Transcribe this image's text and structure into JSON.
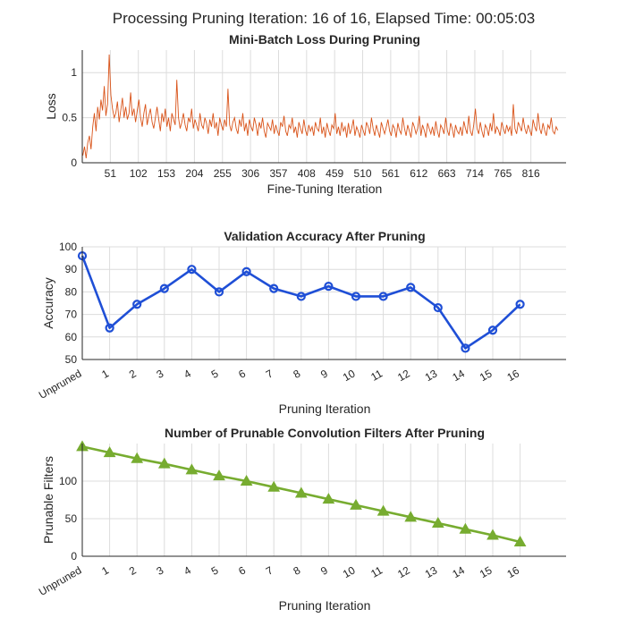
{
  "figure": {
    "suptitle": "Processing Pruning Iteration: 16 of 16, Elapsed Time: 00:05:03"
  },
  "colors": {
    "loss_line": "#D95319",
    "accuracy_line": "#1F4FD6",
    "filters_line": "#77AC30",
    "grid": "#dcdcdc",
    "axis": "#262626"
  },
  "chart_data": [
    {
      "type": "line",
      "title": "Mini-Batch Loss During Pruning",
      "xlabel": "Fine-Tuning Iteration",
      "ylabel": "Loss",
      "xlim": [
        0,
        880
      ],
      "ylim": [
        0,
        1.25
      ],
      "xticks": [
        51,
        102,
        153,
        204,
        255,
        306,
        357,
        408,
        459,
        510,
        561,
        612,
        663,
        714,
        765,
        816
      ],
      "yticks": [
        0,
        0.5,
        1
      ],
      "ytick_labels": [
        "0",
        "0.5",
        "1"
      ],
      "grid": true,
      "series": [
        {
          "x_start": 1,
          "x_step": 3,
          "values": [
            0.08,
            0.18,
            0.05,
            0.22,
            0.3,
            0.15,
            0.4,
            0.55,
            0.35,
            0.62,
            0.48,
            0.7,
            0.58,
            0.85,
            0.52,
            0.65,
            1.2,
            0.75,
            0.6,
            0.5,
            0.55,
            0.68,
            0.45,
            0.58,
            0.72,
            0.5,
            0.62,
            0.48,
            0.55,
            0.78,
            0.52,
            0.6,
            0.45,
            0.58,
            0.7,
            0.5,
            0.4,
            0.55,
            0.65,
            0.42,
            0.52,
            0.6,
            0.45,
            0.38,
            0.5,
            0.62,
            0.48,
            0.35,
            0.55,
            0.45,
            0.6,
            0.4,
            0.5,
            0.35,
            0.55,
            0.48,
            0.42,
            0.92,
            0.5,
            0.38,
            0.45,
            0.55,
            0.42,
            0.35,
            0.5,
            0.45,
            0.6,
            0.38,
            0.48,
            0.42,
            0.35,
            0.55,
            0.42,
            0.38,
            0.5,
            0.44,
            0.32,
            0.48,
            0.4,
            0.55,
            0.38,
            0.45,
            0.3,
            0.5,
            0.42,
            0.36,
            0.48,
            0.4,
            0.82,
            0.42,
            0.35,
            0.45,
            0.5,
            0.38,
            0.32,
            0.48,
            0.4,
            0.55,
            0.35,
            0.44,
            0.3,
            0.48,
            0.4,
            0.35,
            0.5,
            0.42,
            0.3,
            0.45,
            0.38,
            0.5,
            0.35,
            0.28,
            0.44,
            0.4,
            0.36,
            0.48,
            0.32,
            0.42,
            0.35,
            0.3,
            0.45,
            0.4,
            0.52,
            0.35,
            0.3,
            0.42,
            0.38,
            0.5,
            0.33,
            0.4,
            0.28,
            0.45,
            0.38,
            0.32,
            0.48,
            0.36,
            0.3,
            0.42,
            0.35,
            0.4,
            0.3,
            0.45,
            0.38,
            0.35,
            0.5,
            0.32,
            0.4,
            0.28,
            0.44,
            0.36,
            0.3,
            0.42,
            0.38,
            0.55,
            0.32,
            0.4,
            0.3,
            0.45,
            0.35,
            0.4,
            0.28,
            0.44,
            0.32,
            0.38,
            0.48,
            0.3,
            0.4,
            0.35,
            0.28,
            0.42,
            0.36,
            0.3,
            0.45,
            0.4,
            0.32,
            0.5,
            0.38,
            0.3,
            0.42,
            0.35,
            0.28,
            0.45,
            0.38,
            0.32,
            0.4,
            0.48,
            0.35,
            0.3,
            0.42,
            0.38,
            0.28,
            0.44,
            0.36,
            0.32,
            0.5,
            0.38,
            0.3,
            0.42,
            0.35,
            0.28,
            0.45,
            0.4,
            0.32,
            0.38,
            0.52,
            0.3,
            0.42,
            0.36,
            0.28,
            0.44,
            0.38,
            0.32,
            0.4,
            0.3,
            0.46,
            0.35,
            0.28,
            0.42,
            0.38,
            0.32,
            0.5,
            0.36,
            0.3,
            0.44,
            0.38,
            0.28,
            0.42,
            0.35,
            0.32,
            0.4,
            0.3,
            0.46,
            0.38,
            0.32,
            0.52,
            0.35,
            0.3,
            0.42,
            0.6,
            0.38,
            0.32,
            0.45,
            0.35,
            0.28,
            0.42,
            0.38,
            0.3,
            0.44,
            0.35,
            0.55,
            0.32,
            0.4,
            0.36,
            0.3,
            0.45,
            0.38,
            0.32,
            0.42,
            0.35,
            0.4,
            0.3,
            0.65,
            0.38,
            0.32,
            0.45,
            0.4,
            0.35,
            0.5,
            0.38,
            0.32,
            0.42,
            0.36,
            0.3,
            0.48,
            0.4,
            0.35,
            0.55,
            0.38,
            0.32,
            0.44,
            0.36,
            0.3,
            0.42,
            0.38,
            0.5,
            0.35,
            0.32,
            0.4,
            0.36
          ]
        }
      ]
    },
    {
      "type": "line",
      "title": "Validation Accuracy After Pruning",
      "xlabel": "Pruning Iteration",
      "ylabel": "Accuracy",
      "categories": [
        "Unpruned",
        "1",
        "2",
        "3",
        "4",
        "5",
        "6",
        "7",
        "8",
        "9",
        "10",
        "11",
        "12",
        "13",
        "14",
        "15",
        "16"
      ],
      "ylim": [
        50,
        100
      ],
      "yticks": [
        50,
        60,
        70,
        80,
        90,
        100
      ],
      "grid": true,
      "marker": "circle",
      "series": [
        {
          "values": [
            96,
            64,
            74.5,
            81.5,
            90,
            80,
            89,
            81.5,
            78,
            82.5,
            78,
            78,
            82,
            73,
            55,
            63,
            74.5
          ]
        }
      ]
    },
    {
      "type": "line",
      "title": "Number of Prunable Convolution Filters After Pruning",
      "xlabel": "Pruning Iteration",
      "ylabel": "Prunable Filters",
      "categories": [
        "Unpruned",
        "1",
        "2",
        "3",
        "4",
        "5",
        "6",
        "7",
        "8",
        "9",
        "10",
        "11",
        "12",
        "13",
        "14",
        "15",
        "16"
      ],
      "ylim": [
        0,
        150
      ],
      "yticks": [
        0,
        50,
        100
      ],
      "grid": true,
      "marker": "triangle",
      "series": [
        {
          "values": [
            146,
            138,
            130,
            123,
            115,
            107,
            100,
            92,
            84,
            76,
            68,
            60,
            52,
            44,
            36,
            28,
            19
          ]
        }
      ]
    }
  ]
}
